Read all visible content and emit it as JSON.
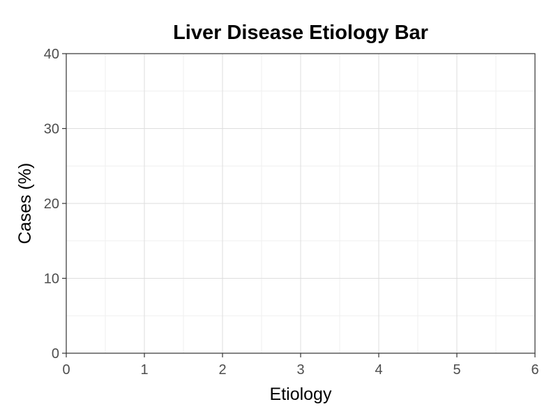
{
  "chart_data": {
    "type": "bar",
    "title": "Liver Disease Etiology Bar",
    "xlabel": "Etiology",
    "ylabel": "Cases (%)",
    "categories": [],
    "values": [],
    "xlim": [
      0,
      6
    ],
    "ylim": [
      0,
      40
    ],
    "x_ticks": [
      0,
      1,
      2,
      3,
      4,
      5,
      6
    ],
    "y_ticks": [
      0,
      10,
      20,
      30,
      40
    ],
    "x_tick_labels": [
      "0",
      "1",
      "2",
      "3",
      "4",
      "5",
      "6"
    ],
    "y_tick_labels": [
      "0",
      "10",
      "20",
      "30",
      "40"
    ],
    "grid": true,
    "legend": "none",
    "colors": {
      "grid_major": "#dedede",
      "grid_minor": "#efefef",
      "axis": "#333333",
      "tick_text": "#4d4d4d",
      "title_text": "#000000"
    }
  }
}
